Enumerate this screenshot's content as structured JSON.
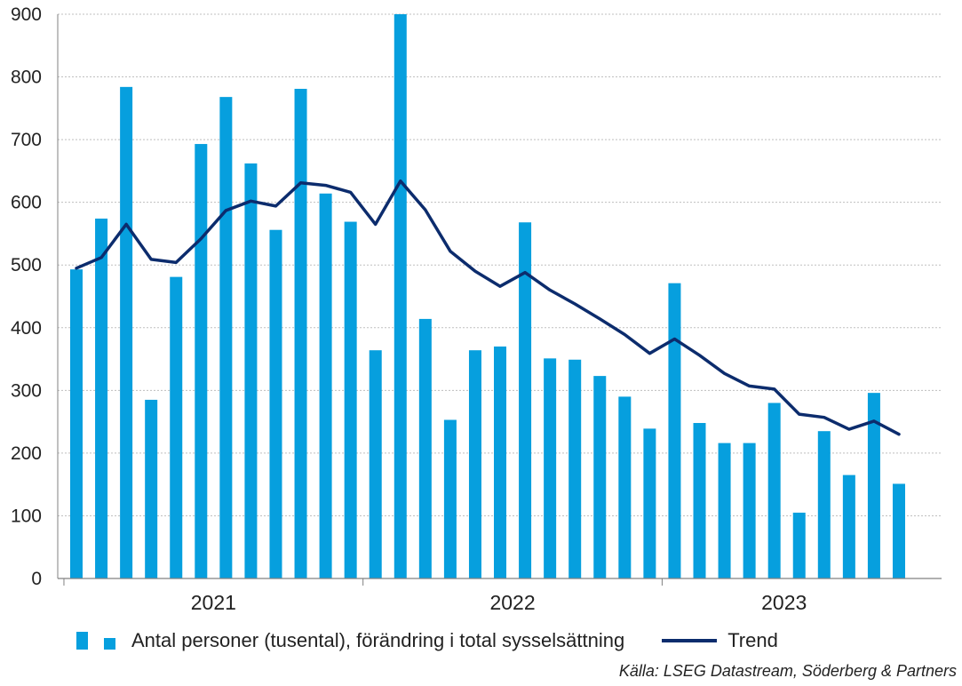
{
  "chart_data": {
    "type": "bar",
    "title": "",
    "xlabel": "",
    "ylabel": "",
    "ylim": [
      0,
      900
    ],
    "yticks": [
      0,
      100,
      200,
      300,
      400,
      500,
      600,
      700,
      800,
      900
    ],
    "year_labels": [
      "2021",
      "2022",
      "2023"
    ],
    "grid": "horizontal dotted",
    "legend_position": "bottom",
    "series": [
      {
        "name": "Antal personer (tusental), förändring i total sysselsättning",
        "type": "bar",
        "color": "#069FDE",
        "values": [
          493,
          574,
          784,
          285,
          481,
          693,
          768,
          662,
          556,
          781,
          614,
          569,
          364,
          900,
          414,
          253,
          364,
          370,
          568,
          351,
          349,
          323,
          290,
          239,
          471,
          248,
          216,
          216,
          280,
          105,
          235,
          165,
          296,
          151
        ]
      },
      {
        "name": "Trend",
        "type": "line",
        "color": "#0C2C6D",
        "values": [
          495,
          512,
          565,
          509,
          504,
          542,
          587,
          602,
          594,
          631,
          627,
          616,
          565,
          634,
          588,
          522,
          490,
          466,
          488,
          460,
          438,
          414,
          389,
          359,
          382,
          356,
          327,
          307,
          302,
          262,
          257,
          238,
          251,
          230
        ]
      }
    ]
  },
  "legend": {
    "bar_label": "Antal personer (tusental), förändring i total sysselsättning",
    "line_label": "Trend"
  },
  "source": "Källa: LSEG Datastream, Söderberg & Partners"
}
